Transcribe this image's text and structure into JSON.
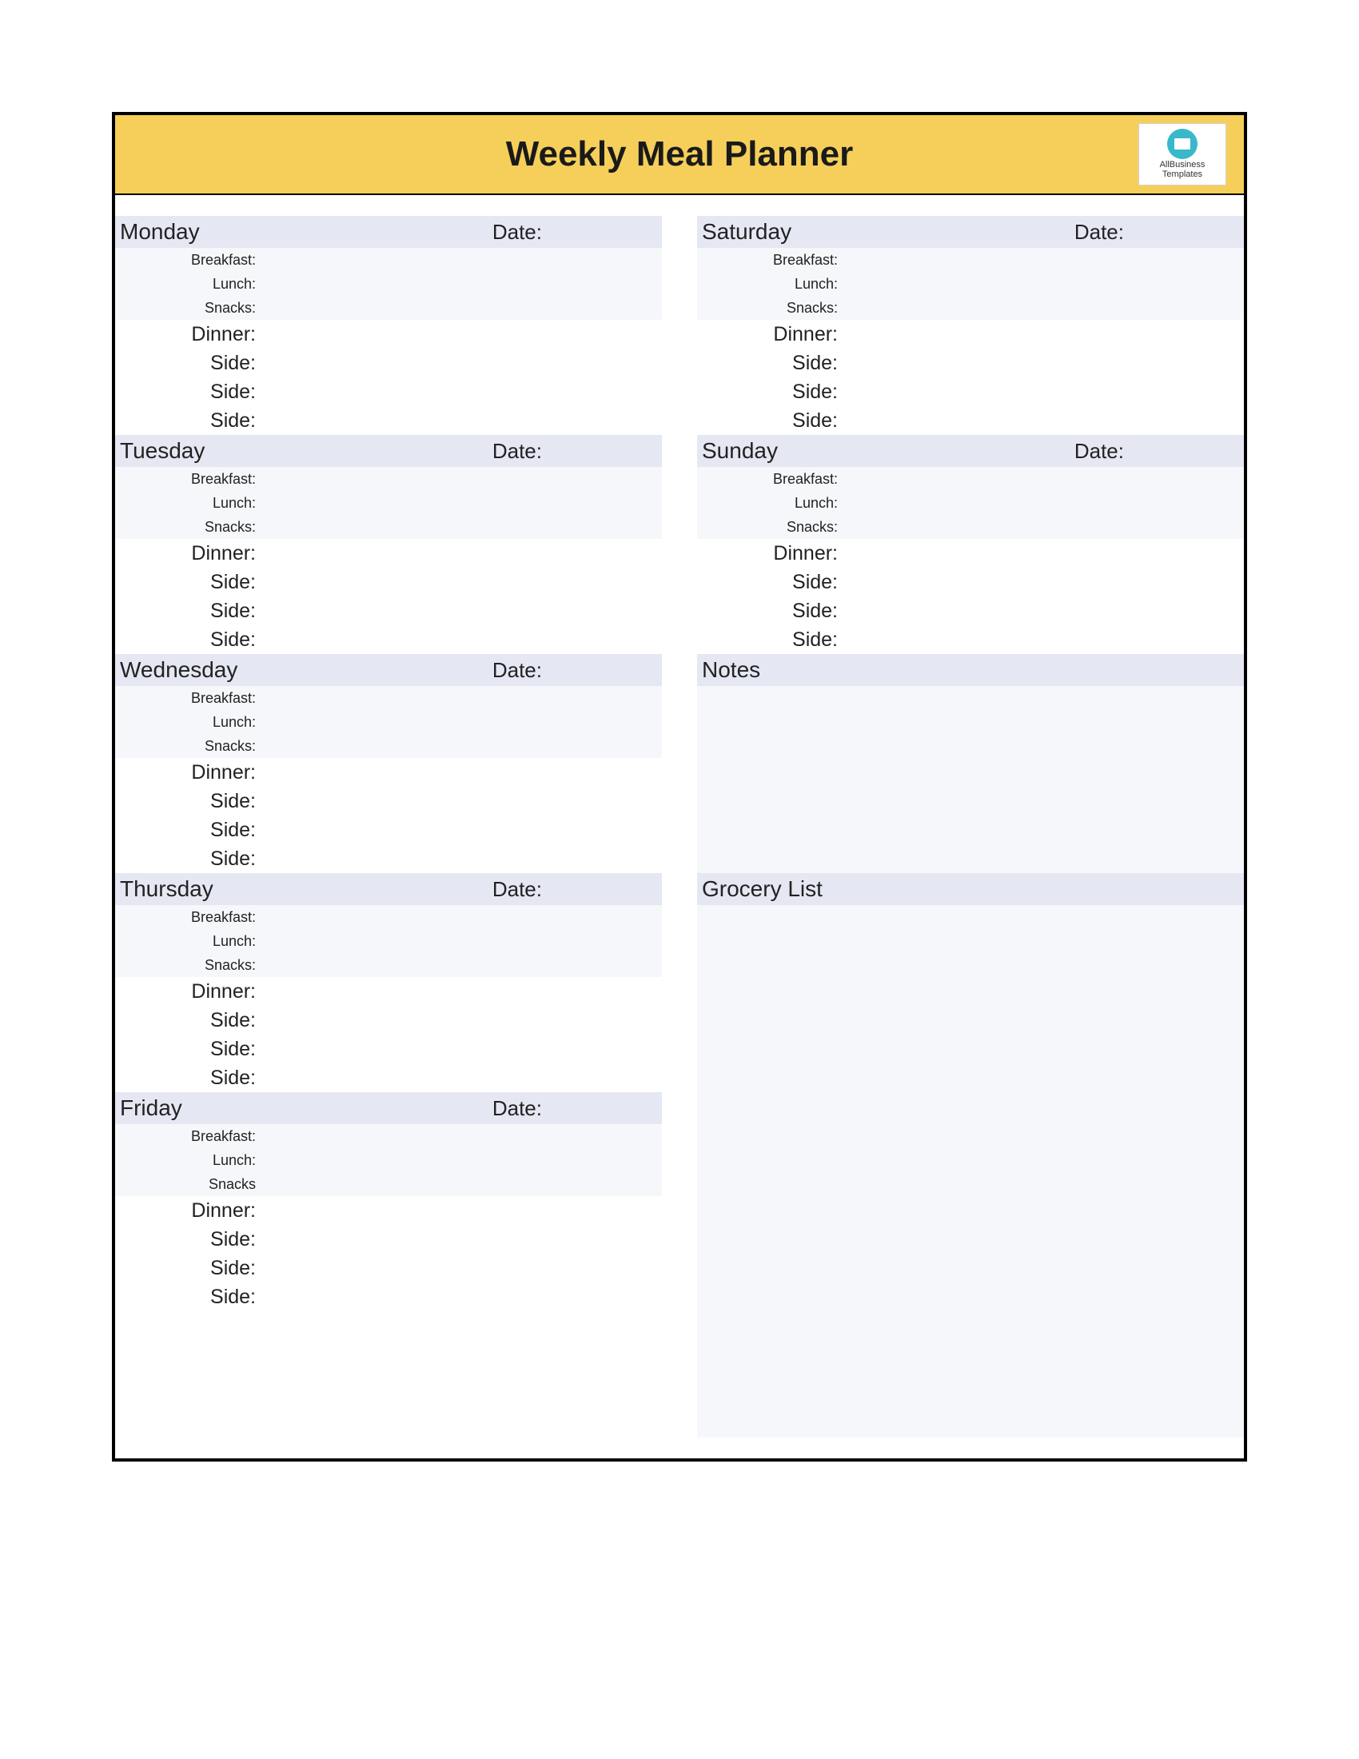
{
  "title": "Weekly Meal Planner",
  "logo": {
    "line1": "AllBusiness",
    "line2": "Templates"
  },
  "labels": {
    "date": "Date:",
    "breakfast": "Breakfast:",
    "lunch": "Lunch:",
    "snacks": "Snacks:",
    "snacks_nocolon": "Snacks",
    "dinner": "Dinner:",
    "side": "Side:",
    "notes": "Notes",
    "grocery": "Grocery List"
  },
  "days_left": [
    "Monday",
    "Tuesday",
    "Wednesday",
    "Thursday",
    "Friday"
  ],
  "days_right": [
    "Saturday",
    "Sunday"
  ],
  "style": {
    "header_bg": "#f6cf5a",
    "dayhead_bg": "#e5e7f3",
    "smallrow_bg": "#f6f7fa",
    "largerow_bg": "#ffffff",
    "border_color": "#000000",
    "title_fontsize": 44,
    "dayname_fontsize": 28,
    "small_fontsize": 18,
    "large_fontsize": 25,
    "logo_circle": "#38b8c9"
  }
}
